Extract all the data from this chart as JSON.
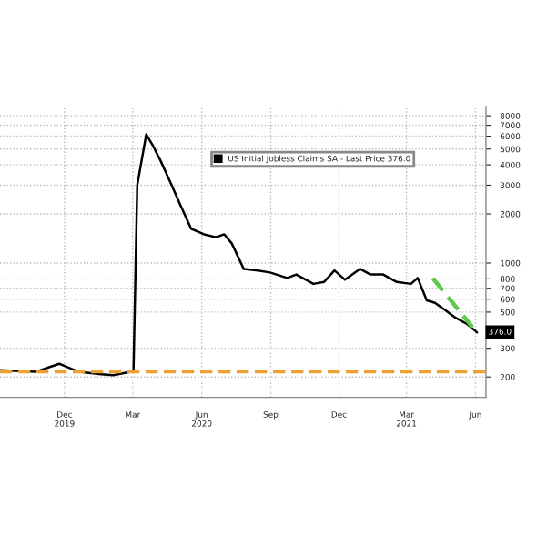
{
  "chart_data": {
    "type": "line",
    "log": "y",
    "grid": true,
    "legend": "top right",
    "tick_labels": "xy",
    "series": [
      {
        "name": "US Initial Jobless Claims SA - Last Price 376.0",
        "color": "#000000",
        "x": [
          "2019-09-06",
          "2019-10-23",
          "2019-11-24",
          "2019-12-20",
          "2020-01-19",
          "2020-02-04",
          "2020-02-27",
          "2020-03-02",
          "2020-03-07",
          "2020-03-19",
          "2020-03-28",
          "2020-04-07",
          "2020-04-21",
          "2020-05-02",
          "2020-05-18",
          "2020-06-04",
          "2020-06-20",
          "2020-07-01",
          "2020-07-11",
          "2020-07-27",
          "2020-08-15",
          "2020-08-31",
          "2020-09-23",
          "2020-10-05",
          "2020-10-28",
          "2020-11-11",
          "2020-11-25",
          "2020-12-09",
          "2020-12-29",
          "2021-01-12",
          "2021-01-29",
          "2021-02-16",
          "2021-03-07",
          "2021-03-16",
          "2021-03-28",
          "2021-04-08",
          "2021-04-20",
          "2021-05-06",
          "2021-05-20",
          "2021-05-29",
          "2021-06-03"
        ],
        "values": [
          220,
          215,
          241,
          215,
          208,
          205,
          215,
          220,
          3000,
          6150,
          5230,
          4250,
          3070,
          2350,
          1620,
          1500,
          1440,
          1500,
          1320,
          920,
          900,
          875,
          810,
          850,
          745,
          765,
          900,
          790,
          920,
          850,
          850,
          765,
          745,
          810,
          590,
          570,
          520,
          460,
          425,
          393,
          376
        ]
      },
      {
        "type": "line",
        "color": "#5ec94a",
        "line_style": "dashed",
        "x": [
          "2021-04-05",
          "2021-05-28"
        ],
        "values": [
          808,
          404
        ]
      }
    ],
    "ref_lines": [
      {
        "axis": "y",
        "value": 215,
        "color": "#f0a030",
        "line_style": "dashed"
      }
    ],
    "annotations": [
      {
        "text": "376.0",
        "x": "2021-06-03",
        "y": 376
      }
    ],
    "xlim": [
      "2019-09-06",
      "2021-06-15"
    ],
    "xticks": [
      {
        "value": "2019-12-01",
        "label": "Dec\n2019"
      },
      {
        "value": "2020-03-01",
        "label": "Mar"
      },
      {
        "value": "2020-06-01",
        "label": "Jun\n2020"
      },
      {
        "value": "2020-09-01",
        "label": "Sep"
      },
      {
        "value": "2020-12-01",
        "label": "Dec"
      },
      {
        "value": "2021-03-01",
        "label": "Mar\n2021"
      },
      {
        "value": "2021-06-01",
        "label": "Jun"
      }
    ],
    "ylim": [
      150,
      9000
    ],
    "yticks": [
      200,
      300,
      500,
      600,
      700,
      800,
      1000,
      2000,
      3000,
      4000,
      5000,
      6000,
      7000,
      8000
    ]
  }
}
